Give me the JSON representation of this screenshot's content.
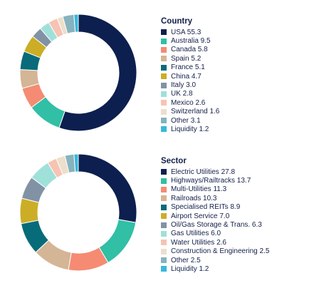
{
  "chart_data": [
    {
      "type": "pie",
      "title": "Country",
      "categories": [
        "USA",
        "Australia",
        "Canada",
        "Spain",
        "France",
        "China",
        "Italy",
        "UK",
        "Mexico",
        "Switzerland",
        "Other",
        "Liquidity"
      ],
      "values": [
        55.3,
        9.5,
        5.8,
        5.2,
        5.1,
        4.7,
        3.0,
        2.8,
        2.6,
        1.6,
        3.1,
        1.2
      ],
      "labels": [
        "USA 55.3",
        "Australia 9.5",
        "Canada 5.8",
        "Spain 5.2",
        "France 5.1",
        "China 4.7",
        "Italy 3.0",
        "UK 2.8",
        "Mexico 2.6",
        "Switzerland 1.6",
        "Other 3.1",
        "Liquidity 1.2"
      ],
      "colors": [
        "#0d1f4f",
        "#31bfa5",
        "#f58b73",
        "#d4b596",
        "#086b79",
        "#ccad26",
        "#8292a5",
        "#9fe1d9",
        "#f7c3b3",
        "#ecdfcb",
        "#86b3bd",
        "#38b8da"
      ],
      "legend": "right"
    },
    {
      "type": "pie",
      "title": "Sector",
      "categories": [
        "Electric Utilities",
        "Highways/Railtracks",
        "Multi-Utilities",
        "Railroads",
        "Specialised REITs",
        "Airport Service",
        "Oil/Gas Storage & Trans.",
        "Gas Utilities",
        "Water Utilities",
        "Construction & Engineering",
        "Other",
        "Liquidity"
      ],
      "values": [
        27.8,
        13.7,
        11.3,
        10.3,
        8.9,
        7.0,
        6.3,
        6.0,
        2.6,
        2.5,
        2.5,
        1.2
      ],
      "labels": [
        "Electric Utilities 27.8",
        "Highways/Railtracks 13.7",
        "Multi-Utilities 11.3",
        "Railroads 10.3",
        "Specialised REITs 8.9",
        "Airport Service 7.0",
        "Oil/Gas Storage & Trans. 6.3",
        "Gas Utilities 6.0",
        "Water Utilities 2.6",
        "Construction & Engineering 2.5",
        "Other 2.5",
        "Liquidity 1.2"
      ],
      "colors": [
        "#0d1f4f",
        "#31bfa5",
        "#f58b73",
        "#d4b596",
        "#086b79",
        "#ccad26",
        "#8292a5",
        "#9fe1d9",
        "#f7c3b3",
        "#ecdfcb",
        "#86b3bd",
        "#38b8da"
      ],
      "legend": "right"
    }
  ]
}
